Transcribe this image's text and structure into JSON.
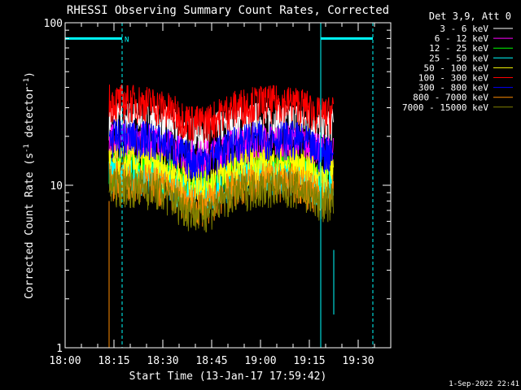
{
  "chart_data": {
    "type": "line",
    "title": "RHESSI Observing Summary Count Rates, Corrected",
    "xlabel": "Start Time (13-Jan-17 17:59:42)",
    "ylabel_main": "Corrected Count Rate (s",
    "ylabel_sup1": "-1",
    "ylabel_mid": " detector",
    "ylabel_sup2": "-1",
    "ylabel_end": ")",
    "yscale": "log",
    "ylim": [
      1,
      100
    ],
    "xlim_min": [
      0,
      100
    ],
    "xticks": [
      {
        "min": 0,
        "label": "18:00"
      },
      {
        "min": 15,
        "label": "18:15"
      },
      {
        "min": 30,
        "label": "18:30"
      },
      {
        "min": 45,
        "label": "18:45"
      },
      {
        "min": 60,
        "label": "19:00"
      },
      {
        "min": 75,
        "label": "19:15"
      },
      {
        "min": 90,
        "label": "19:30"
      }
    ],
    "yticks": [
      {
        "value": 100,
        "label": "100"
      },
      {
        "value": 10,
        "label": "10"
      },
      {
        "value": 1,
        "label": "1"
      }
    ],
    "legend_header": "Det 3,9, Att 0",
    "legend_position": "top-right-outside",
    "series": [
      {
        "name": "3 - 6 keV",
        "color": "#ffffff",
        "base": 26,
        "low": 17
      },
      {
        "name": "6 - 12 keV",
        "color": "#ff00ff",
        "base": 19,
        "low": 12
      },
      {
        "name": "12 - 25 keV",
        "color": "#00ff00",
        "base": 13,
        "low": 7
      },
      {
        "name": "25 - 50 keV",
        "color": "#00ffff",
        "base": 12,
        "low": 6.5
      },
      {
        "name": "50 - 100 keV",
        "color": "#ffff00",
        "base": 14,
        "low": 8
      },
      {
        "name": "100 - 300 keV",
        "color": "#ff0000",
        "base": 33,
        "low": 18
      },
      {
        "name": "300 - 800 keV",
        "color": "#0000ff",
        "base": 20,
        "low": 10
      },
      {
        "name": "800 - 7000 keV",
        "color": "#ff8c00",
        "base": 11,
        "low": 5
      },
      {
        "name": "7000 - 15000 keV",
        "color": "#808000",
        "base": 10,
        "low": 4.5
      }
    ],
    "flag_label": "N",
    "flags": [
      {
        "start": 0,
        "end": 17.5,
        "label": "N"
      },
      {
        "start": 78.5,
        "end": 94.5,
        "label": ""
      }
    ],
    "data_start": 13.5,
    "data_end": 82.5,
    "timestamp": "1-Sep-2022 22:41"
  }
}
